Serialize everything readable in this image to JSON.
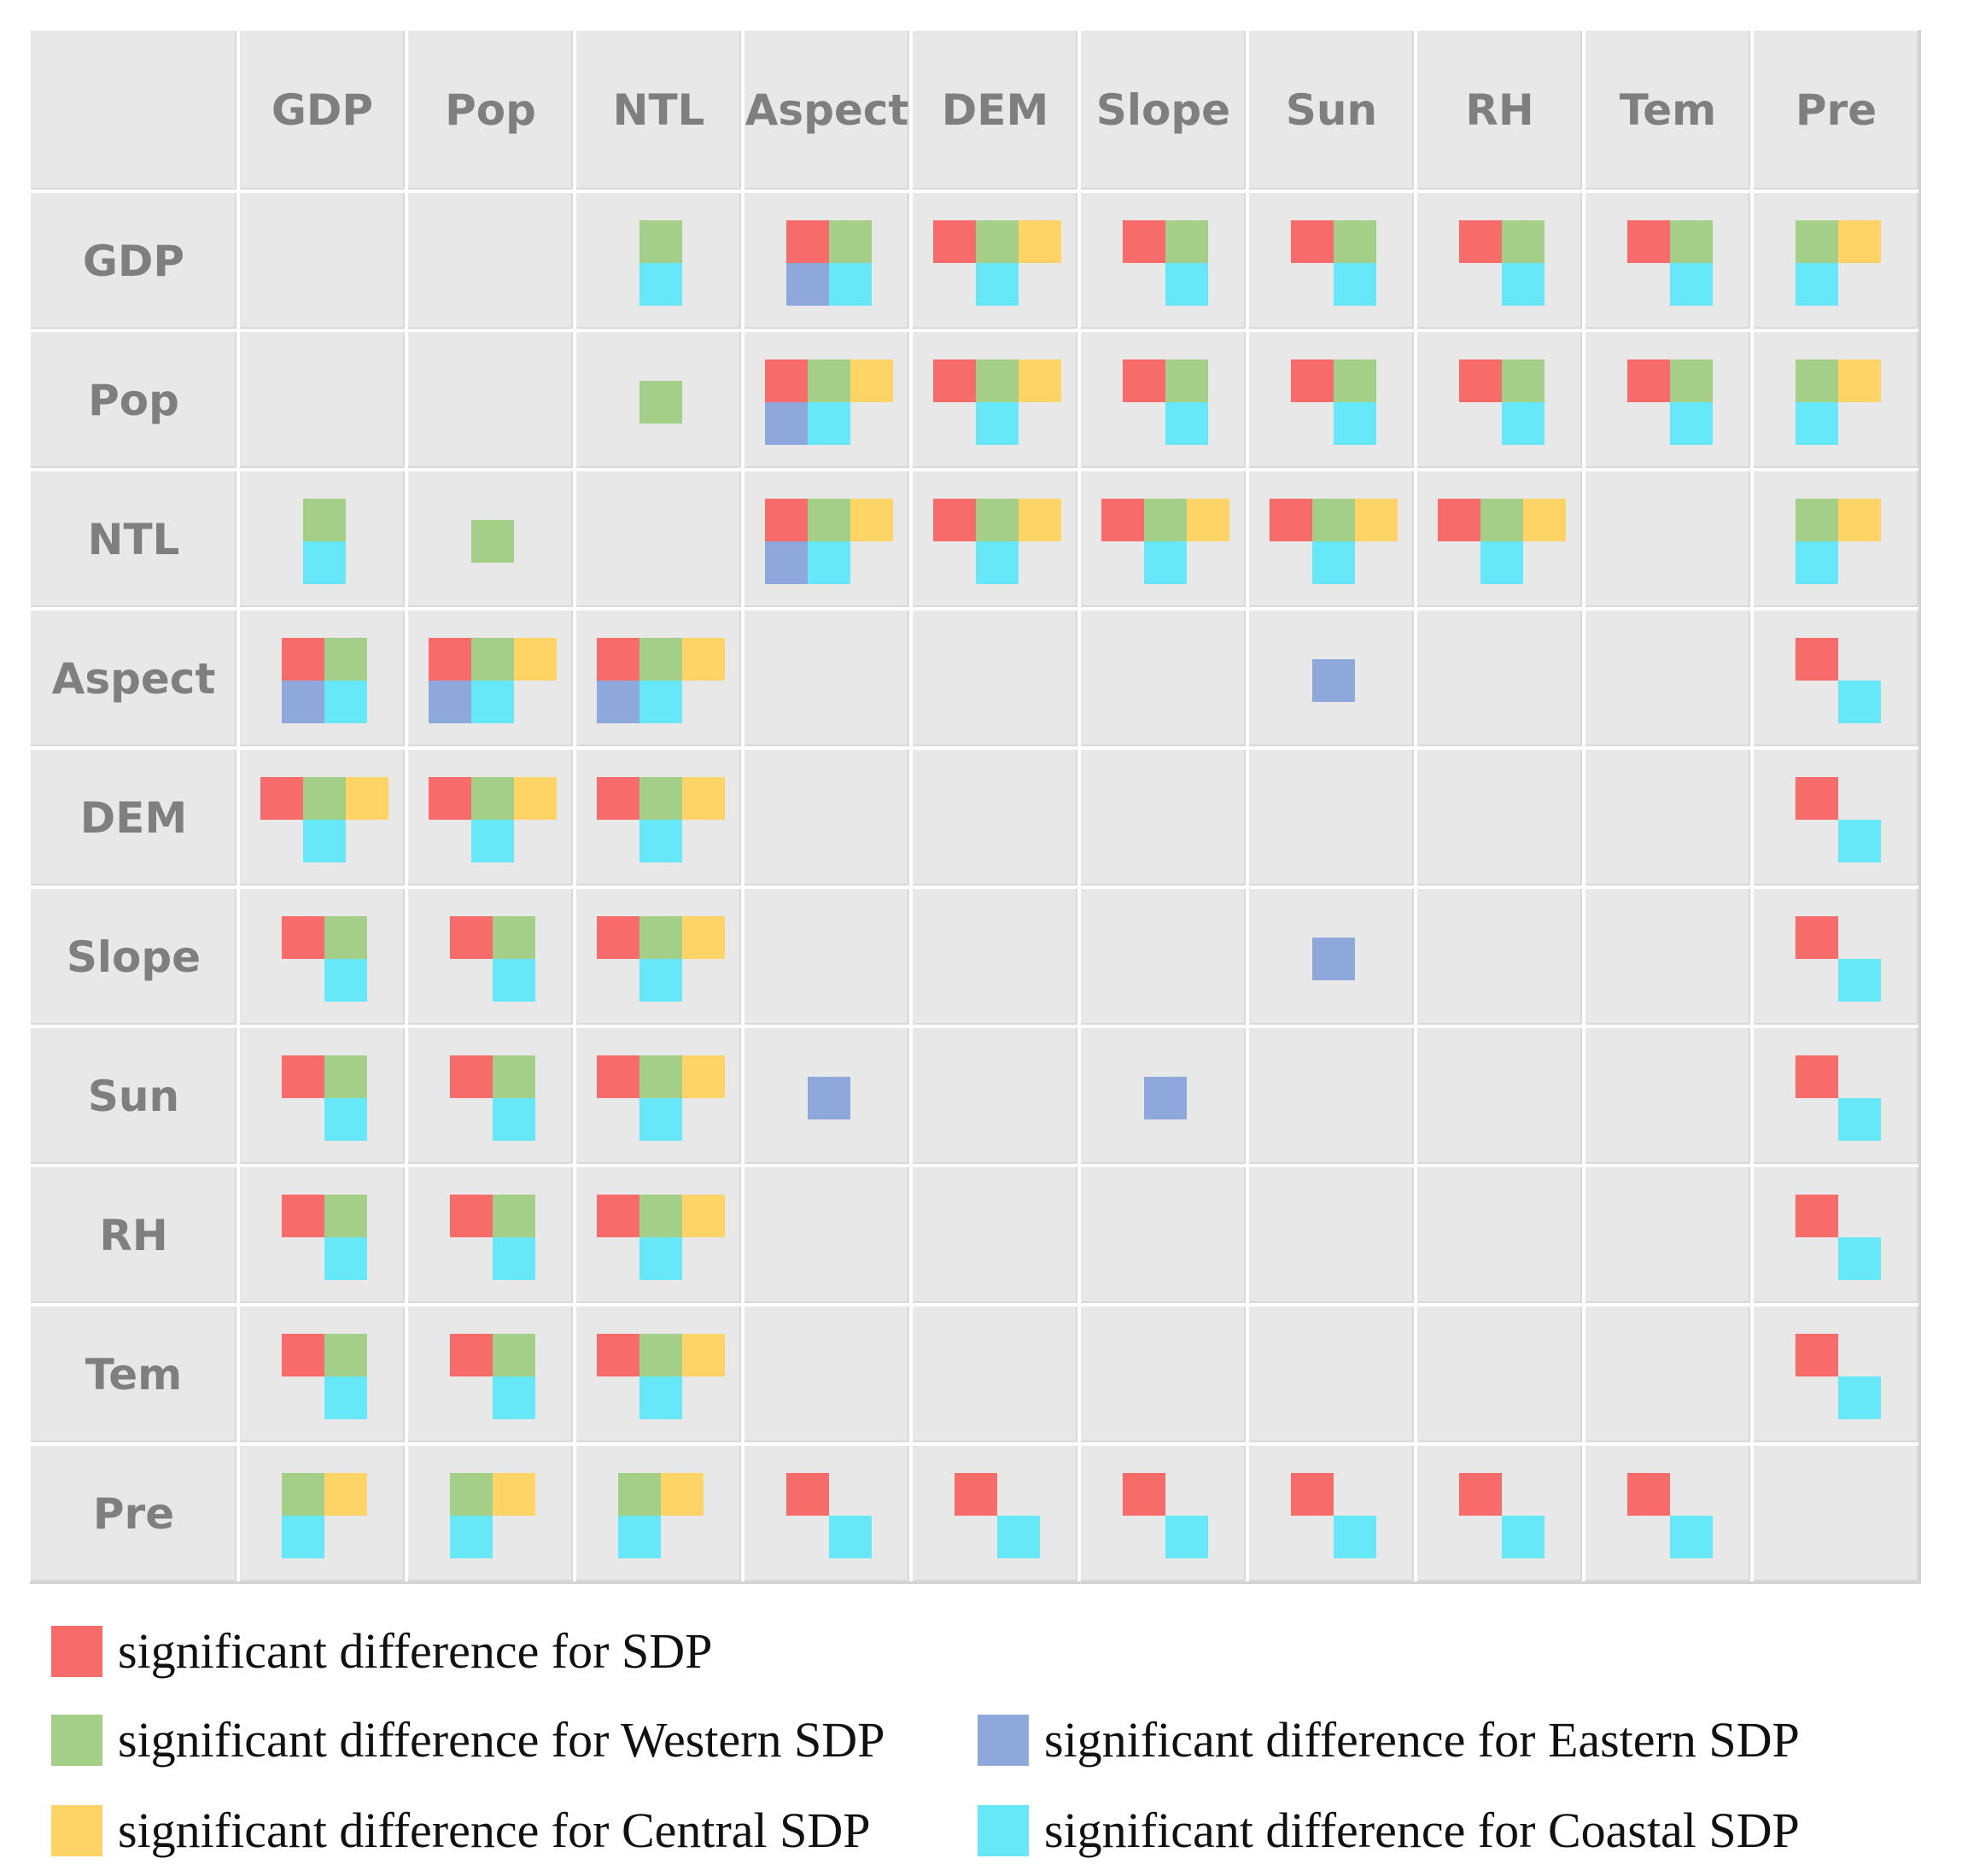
{
  "chart_data": {
    "type": "matrix",
    "variables": [
      "GDP",
      "Pop",
      "NTL",
      "Aspect",
      "DEM",
      "Slope",
      "Sun",
      "RH",
      "Tem",
      "Pre"
    ],
    "colors": {
      "SDP": "#f86b6b",
      "Western": "#a4cf89",
      "Central": "#fed467",
      "Eastern": "#8ea8dc",
      "Coastal": "#66e8f9"
    },
    "legend": [
      {
        "key": "SDP",
        "label": "significant difference for SDP"
      },
      {
        "key": "Western",
        "label": "significant difference for Western SDP"
      },
      {
        "key": "Eastern",
        "label": "significant difference for Eastern SDP"
      },
      {
        "key": "Central",
        "label": "significant difference for Central SDP"
      },
      {
        "key": "Coastal",
        "label": "significant difference for Coastal SDP"
      }
    ],
    "cells": {
      "GDP": {
        "NTL": [
          "W",
          "C*"
        ],
        "Aspect": [
          "S",
          "W",
          "E",
          "K"
        ],
        "DEM": [
          "S",
          "W",
          "C",
          "K"
        ],
        "Slope": [
          "S",
          "W",
          "K"
        ],
        "Sun": [
          "S",
          "W",
          "K"
        ],
        "RH": [
          "S",
          "W",
          "K"
        ],
        "Tem": [
          "S",
          "W",
          "K"
        ],
        "Pre": [
          "W",
          "C",
          "K"
        ]
      },
      "Pop": {
        "NTL": [
          "W1"
        ],
        "Aspect": [
          "S",
          "W",
          "C",
          "E",
          "K"
        ],
        "DEM": [
          "S",
          "W",
          "C",
          "K"
        ],
        "Slope": [
          "S",
          "W",
          "K"
        ],
        "Sun": [
          "S",
          "W",
          "K"
        ],
        "RH": [
          "S",
          "W",
          "K"
        ],
        "Tem": [
          "S",
          "W",
          "K"
        ],
        "Pre": [
          "W",
          "C",
          "K"
        ]
      },
      "NTL": {
        "GDP": [
          "W",
          "C*"
        ],
        "Pop": [
          "W1"
        ],
        "Aspect": [
          "S",
          "W",
          "C",
          "E",
          "K"
        ],
        "DEM": [
          "S",
          "W",
          "C",
          "K"
        ],
        "Slope": [
          "S",
          "W",
          "C",
          "K"
        ],
        "Sun": [
          "S",
          "W",
          "C",
          "K"
        ],
        "RH": [
          "S",
          "W",
          "C",
          "K"
        ],
        "Pre": [
          "W",
          "C",
          "K"
        ]
      },
      "Aspect": {
        "GDP": [
          "S",
          "W",
          "E",
          "K"
        ],
        "Pop": [
          "S",
          "W",
          "C",
          "E",
          "K"
        ],
        "NTL": [
          "S",
          "W",
          "C",
          "E",
          "K"
        ],
        "Sun": [
          "E1"
        ],
        "Pre": [
          "S",
          "K"
        ]
      },
      "DEM": {
        "GDP": [
          "S",
          "W",
          "C",
          "K"
        ],
        "Pop": [
          "S",
          "W",
          "C",
          "K"
        ],
        "NTL": [
          "S",
          "W",
          "C",
          "K"
        ],
        "Pre": [
          "S",
          "K"
        ]
      },
      "Slope": {
        "GDP": [
          "S",
          "W",
          "K"
        ],
        "Pop": [
          "S",
          "W",
          "K"
        ],
        "NTL": [
          "S",
          "W",
          "C",
          "K"
        ],
        "Sun": [
          "E1"
        ],
        "Pre": [
          "S",
          "K"
        ]
      },
      "Sun": {
        "GDP": [
          "S",
          "W",
          "K"
        ],
        "Pop": [
          "S",
          "W",
          "K"
        ],
        "NTL": [
          "S",
          "W",
          "C",
          "K"
        ],
        "Aspect": [
          "E1"
        ],
        "Slope": [
          "E1"
        ],
        "Pre": [
          "S",
          "K"
        ]
      },
      "RH": {
        "GDP": [
          "S",
          "W",
          "K"
        ],
        "Pop": [
          "S",
          "W",
          "K"
        ],
        "NTL": [
          "S",
          "W",
          "C",
          "K"
        ],
        "Pre": [
          "S",
          "K"
        ]
      },
      "Tem": {
        "GDP": [
          "S",
          "W",
          "K"
        ],
        "Pop": [
          "S",
          "W",
          "K"
        ],
        "NTL": [
          "S",
          "W",
          "C",
          "K"
        ],
        "Pre": [
          "S",
          "K"
        ]
      },
      "Pre": {
        "GDP": [
          "W",
          "C",
          "K"
        ],
        "Pop": [
          "W",
          "C",
          "K"
        ],
        "NTL": [
          "W",
          "C",
          "K"
        ],
        "Aspect": [
          "S",
          "K"
        ],
        "DEM": [
          "S",
          "K"
        ],
        "Slope": [
          "S",
          "K"
        ],
        "Sun": [
          "S",
          "K"
        ],
        "RH": [
          "S",
          "K"
        ],
        "Tem": [
          "S",
          "K"
        ]
      }
    }
  }
}
